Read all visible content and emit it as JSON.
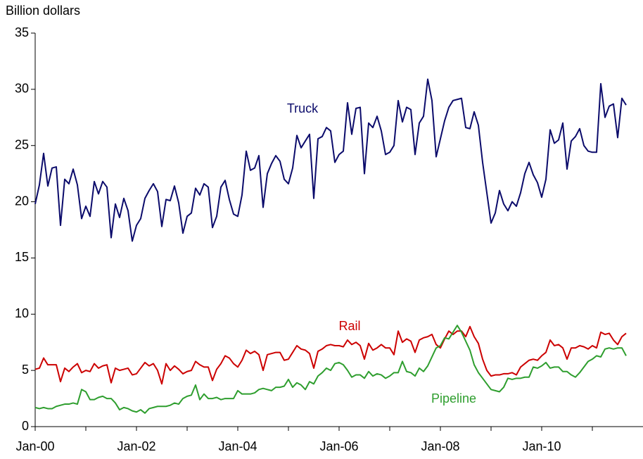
{
  "chart_data": {
    "type": "line",
    "y_label": "Billion dollars",
    "categories": [
      "Jan-00",
      null,
      null,
      null,
      null,
      null,
      null,
      null,
      null,
      null,
      null,
      null,
      null,
      null,
      null,
      null,
      null,
      null,
      null,
      null,
      null,
      null,
      null,
      null,
      "Jan-02",
      null,
      null,
      null,
      null,
      null,
      null,
      null,
      null,
      null,
      null,
      null,
      null,
      null,
      null,
      null,
      null,
      null,
      null,
      null,
      null,
      null,
      null,
      null,
      "Jan-04",
      null,
      null,
      null,
      null,
      null,
      null,
      null,
      null,
      null,
      null,
      null,
      null,
      null,
      null,
      null,
      null,
      null,
      null,
      null,
      null,
      null,
      null,
      null,
      "Jan-06",
      null,
      null,
      null,
      null,
      null,
      null,
      null,
      null,
      null,
      null,
      null,
      null,
      null,
      null,
      null,
      null,
      null,
      null,
      null,
      null,
      null,
      null,
      null,
      "Jan-08",
      null,
      null,
      null,
      null,
      null,
      null,
      null,
      null,
      null,
      null,
      null,
      null,
      null,
      null,
      null,
      null,
      null,
      null,
      null,
      null,
      null,
      null,
      null,
      "Jan-10",
      null,
      null,
      null,
      null,
      null,
      null,
      null,
      null,
      null,
      null,
      null,
      null,
      null,
      null,
      null,
      null,
      null,
      null,
      null,
      null
    ],
    "series": [
      {
        "name": "Truck",
        "color": "#0b0b6b",
        "values": [
          19.8,
          21.5,
          24.3,
          21.4,
          23.0,
          23.1,
          17.9,
          22.0,
          21.6,
          22.9,
          21.5,
          18.5,
          19.6,
          18.7,
          21.8,
          20.7,
          21.8,
          21.3,
          16.8,
          19.8,
          18.6,
          20.3,
          19.2,
          16.5,
          17.9,
          18.5,
          20.3,
          21.0,
          21.6,
          20.9,
          17.8,
          20.2,
          20.1,
          21.4,
          19.9,
          17.2,
          18.7,
          19.0,
          21.2,
          20.6,
          21.6,
          21.3,
          17.7,
          18.7,
          21.3,
          21.9,
          20.2,
          18.9,
          18.7,
          20.6,
          24.5,
          22.8,
          23.0,
          24.1,
          19.5,
          22.5,
          23.4,
          24.1,
          23.6,
          22.0,
          21.6,
          23.0,
          25.9,
          24.8,
          25.4,
          26.0,
          20.3,
          25.6,
          25.8,
          26.6,
          26.3,
          23.5,
          24.2,
          24.5,
          28.8,
          26.0,
          28.3,
          28.4,
          22.5,
          27.0,
          26.6,
          27.6,
          26.3,
          24.2,
          24.4,
          25.0,
          29.0,
          27.1,
          28.4,
          28.2,
          24.2,
          27.0,
          27.6,
          30.9,
          29.0,
          24.0,
          25.6,
          27.2,
          28.4,
          29.0,
          29.1,
          29.2,
          26.6,
          26.5,
          28.0,
          26.8,
          23.5,
          20.8,
          18.1,
          19.0,
          21.0,
          19.8,
          19.2,
          20.0,
          19.6,
          20.8,
          22.5,
          23.5,
          22.4,
          21.7,
          20.4,
          22.0,
          26.4,
          25.2,
          25.5,
          27.0,
          22.9,
          25.4,
          25.8,
          26.5,
          25.0,
          24.5,
          24.4,
          24.4,
          30.5,
          27.5,
          28.5,
          28.7,
          25.7,
          29.2,
          28.6
        ]
      },
      {
        "name": "Rail",
        "color": "#cc0000",
        "values": [
          5.1,
          5.2,
          6.1,
          5.5,
          5.5,
          5.5,
          4.0,
          5.2,
          4.9,
          5.3,
          5.6,
          4.8,
          5.0,
          4.9,
          5.6,
          5.2,
          5.4,
          5.5,
          3.9,
          5.2,
          5.0,
          5.1,
          5.2,
          4.6,
          4.7,
          5.2,
          5.7,
          5.4,
          5.6,
          5.0,
          3.8,
          5.6,
          5.0,
          5.4,
          5.1,
          4.7,
          4.9,
          5.0,
          5.8,
          5.5,
          5.3,
          5.3,
          4.1,
          5.1,
          5.6,
          6.3,
          6.1,
          5.6,
          5.3,
          5.9,
          6.8,
          6.5,
          6.7,
          6.4,
          5.0,
          6.4,
          6.5,
          6.6,
          6.6,
          5.9,
          6.0,
          6.6,
          7.2,
          6.9,
          6.8,
          6.5,
          5.2,
          6.7,
          6.9,
          7.2,
          7.3,
          7.2,
          7.2,
          7.1,
          7.7,
          7.3,
          7.5,
          7.2,
          6.0,
          7.4,
          6.8,
          7.0,
          7.3,
          7.0,
          7.0,
          6.4,
          8.5,
          7.5,
          7.8,
          7.6,
          6.6,
          7.7,
          7.9,
          8.0,
          8.2,
          7.3,
          7.0,
          7.8,
          8.5,
          8.2,
          8.5,
          8.5,
          8.0,
          8.9,
          8.0,
          7.4,
          6.0,
          5.0,
          4.5,
          4.6,
          4.6,
          4.7,
          4.7,
          4.8,
          4.6,
          5.3,
          5.6,
          5.9,
          6.0,
          5.9,
          6.3,
          6.6,
          7.7,
          7.2,
          7.3,
          7.0,
          6.0,
          7.0,
          7.0,
          7.2,
          7.1,
          6.9,
          7.2,
          7.0,
          8.4,
          8.2,
          8.3,
          7.7,
          7.3,
          8.0,
          8.3
        ]
      },
      {
        "name": "Pipeline",
        "color": "#2e9e2e",
        "values": [
          1.7,
          1.6,
          1.7,
          1.6,
          1.6,
          1.8,
          1.9,
          2.0,
          2.0,
          2.1,
          2.0,
          3.3,
          3.1,
          2.4,
          2.4,
          2.6,
          2.7,
          2.5,
          2.5,
          2.1,
          1.5,
          1.7,
          1.6,
          1.4,
          1.3,
          1.5,
          1.2,
          1.6,
          1.7,
          1.8,
          1.8,
          1.8,
          1.9,
          2.1,
          2.0,
          2.5,
          2.7,
          2.8,
          3.7,
          2.4,
          2.9,
          2.5,
          2.5,
          2.6,
          2.4,
          2.5,
          2.5,
          2.5,
          3.2,
          2.9,
          2.9,
          2.9,
          3.0,
          3.3,
          3.4,
          3.3,
          3.2,
          3.5,
          3.5,
          3.6,
          4.2,
          3.5,
          3.9,
          3.7,
          3.3,
          4.0,
          3.8,
          4.5,
          4.8,
          5.2,
          5.0,
          5.6,
          5.7,
          5.5,
          5.0,
          4.4,
          4.6,
          4.6,
          4.3,
          4.9,
          4.5,
          4.7,
          4.6,
          4.3,
          4.5,
          4.8,
          4.8,
          5.8,
          4.9,
          4.8,
          4.5,
          5.2,
          4.9,
          5.4,
          6.2,
          7.0,
          7.2,
          7.9,
          7.8,
          8.4,
          9.0,
          8.4,
          7.6,
          6.8,
          5.5,
          4.8,
          4.3,
          3.8,
          3.3,
          3.2,
          3.1,
          3.5,
          4.3,
          4.2,
          4.3,
          4.3,
          4.4,
          4.4,
          5.3,
          5.2,
          5.4,
          5.7,
          5.2,
          5.3,
          5.3,
          4.9,
          4.9,
          4.6,
          4.4,
          4.8,
          5.3,
          5.8,
          6.0,
          6.3,
          6.2,
          6.9,
          7.0,
          6.9,
          7.0,
          7.0,
          6.3
        ]
      }
    ],
    "ylim": [
      0,
      35
    ],
    "yticks": [
      0,
      5,
      10,
      15,
      20,
      25,
      30,
      35
    ],
    "grid": false
  }
}
